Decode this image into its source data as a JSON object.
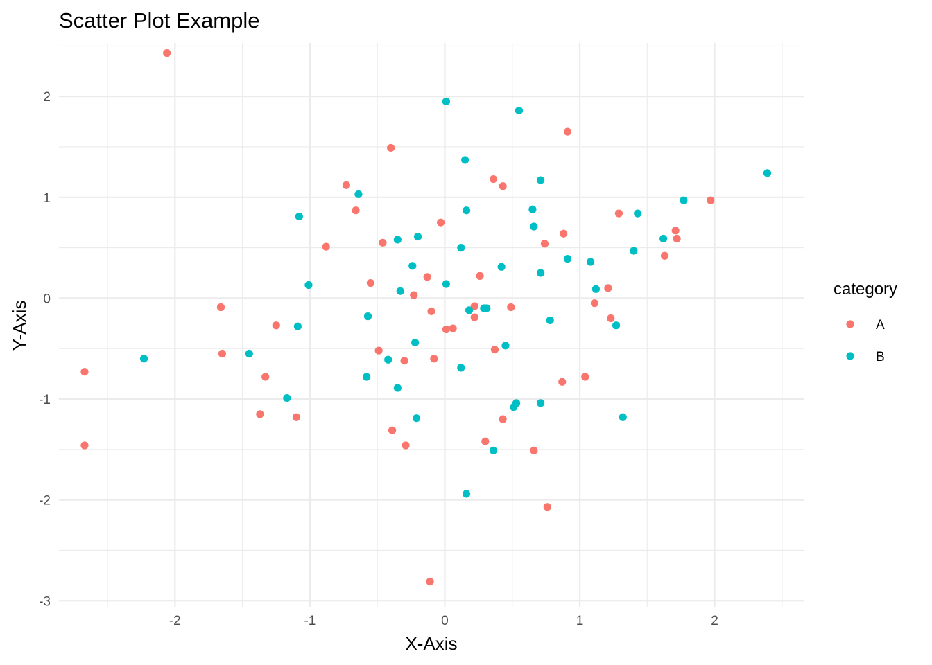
{
  "chart_data": {
    "type": "scatter",
    "title": "Scatter Plot Example",
    "xlabel": "X-Axis",
    "ylabel": "Y-Axis",
    "xlim": [
      -2.86,
      2.66
    ],
    "ylim": [
      -3.06,
      2.53
    ],
    "x_ticks": [
      -2,
      -1,
      0,
      1,
      2
    ],
    "x_tick_labels": [
      "-2",
      "-1",
      "0",
      "1",
      "2"
    ],
    "y_ticks": [
      -3,
      -2,
      -1,
      0,
      1,
      2
    ],
    "y_tick_labels": [
      "-3",
      "-2",
      "-1",
      "0",
      "1",
      "2"
    ],
    "grid": true,
    "legend": {
      "title": "category",
      "position": "right",
      "entries": [
        {
          "label": "A",
          "color": "#F8766D"
        },
        {
          "label": "B",
          "color": "#00BFC4"
        }
      ]
    },
    "series": [
      {
        "name": "A",
        "color": "#F8766D",
        "points": [
          [
            -2.06,
            2.43
          ],
          [
            -2.67,
            -0.73
          ],
          [
            -2.67,
            -1.46
          ],
          [
            -1.66,
            -0.09
          ],
          [
            -1.65,
            -0.55
          ],
          [
            -1.25,
            -0.27
          ],
          [
            -1.33,
            -0.78
          ],
          [
            -1.37,
            -1.15
          ],
          [
            -1.1,
            -1.18
          ],
          [
            -0.88,
            0.51
          ],
          [
            -0.73,
            1.12
          ],
          [
            -0.66,
            0.87
          ],
          [
            -0.4,
            1.49
          ],
          [
            -0.46,
            0.55
          ],
          [
            -0.55,
            0.15
          ],
          [
            -0.49,
            -0.52
          ],
          [
            -0.3,
            -0.62
          ],
          [
            -0.39,
            -1.31
          ],
          [
            -0.29,
            -1.46
          ],
          [
            -0.23,
            0.03
          ],
          [
            -0.13,
            0.21
          ],
          [
            -0.1,
            -0.13
          ],
          [
            -0.08,
            -0.6
          ],
          [
            -0.03,
            0.75
          ],
          [
            -0.11,
            -2.81
          ],
          [
            0.01,
            -0.31
          ],
          [
            0.06,
            -0.3
          ],
          [
            0.22,
            -0.08
          ],
          [
            0.22,
            -0.19
          ],
          [
            0.26,
            0.22
          ],
          [
            0.36,
            1.18
          ],
          [
            0.37,
            -0.51
          ],
          [
            0.43,
            1.11
          ],
          [
            0.43,
            -1.2
          ],
          [
            0.49,
            -0.09
          ],
          [
            0.3,
            -1.42
          ],
          [
            0.66,
            -1.51
          ],
          [
            0.74,
            0.54
          ],
          [
            0.76,
            -2.07
          ],
          [
            0.88,
            0.64
          ],
          [
            0.91,
            1.65
          ],
          [
            0.87,
            -0.83
          ],
          [
            1.04,
            -0.78
          ],
          [
            1.11,
            -0.05
          ],
          [
            1.21,
            0.1
          ],
          [
            1.23,
            -0.2
          ],
          [
            1.29,
            0.84
          ],
          [
            1.63,
            0.42
          ],
          [
            1.71,
            0.67
          ],
          [
            1.72,
            0.59
          ],
          [
            1.97,
            0.97
          ]
        ]
      },
      {
        "name": "B",
        "color": "#00BFC4",
        "points": [
          [
            -2.23,
            -0.6
          ],
          [
            -1.45,
            -0.55
          ],
          [
            -1.17,
            -0.99
          ],
          [
            -1.09,
            -0.28
          ],
          [
            -1.08,
            0.81
          ],
          [
            -1.01,
            0.13
          ],
          [
            -0.64,
            1.03
          ],
          [
            -0.57,
            -0.18
          ],
          [
            -0.58,
            -0.78
          ],
          [
            -0.42,
            -0.61
          ],
          [
            -0.35,
            0.58
          ],
          [
            -0.35,
            -0.89
          ],
          [
            -0.33,
            0.07
          ],
          [
            -0.24,
            0.32
          ],
          [
            -0.22,
            -0.44
          ],
          [
            -0.2,
            0.61
          ],
          [
            -0.21,
            -1.19
          ],
          [
            0.01,
            1.95
          ],
          [
            0.01,
            0.14
          ],
          [
            0.12,
            0.5
          ],
          [
            0.12,
            -0.69
          ],
          [
            0.15,
            1.37
          ],
          [
            0.16,
            0.87
          ],
          [
            0.18,
            -0.12
          ],
          [
            0.16,
            -1.94
          ],
          [
            0.29,
            -0.1
          ],
          [
            0.31,
            -0.1
          ],
          [
            0.36,
            -1.51
          ],
          [
            0.42,
            0.31
          ],
          [
            0.45,
            -0.47
          ],
          [
            0.51,
            -1.08
          ],
          [
            0.53,
            -1.04
          ],
          [
            0.55,
            1.86
          ],
          [
            0.65,
            0.88
          ],
          [
            0.66,
            0.71
          ],
          [
            0.71,
            1.17
          ],
          [
            0.71,
            0.25
          ],
          [
            0.71,
            -1.04
          ],
          [
            0.78,
            -0.22
          ],
          [
            0.91,
            0.39
          ],
          [
            1.08,
            0.36
          ],
          [
            1.12,
            0.09
          ],
          [
            1.27,
            -0.27
          ],
          [
            1.32,
            -1.18
          ],
          [
            1.4,
            0.47
          ],
          [
            1.43,
            0.84
          ],
          [
            1.62,
            0.59
          ],
          [
            1.77,
            0.97
          ],
          [
            2.39,
            1.24
          ]
        ]
      }
    ]
  }
}
